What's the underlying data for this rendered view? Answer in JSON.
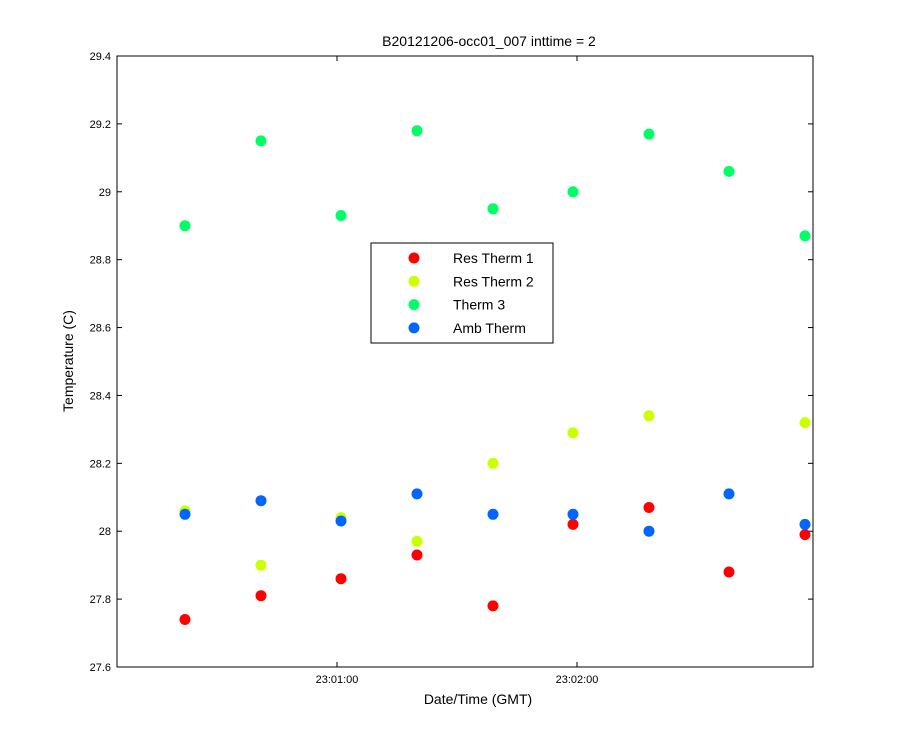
{
  "chart_data": {
    "type": "scatter",
    "title": "B20121206-occ01_007 inttime = 2",
    "xlabel": "Date/Time (GMT)",
    "ylabel": "Temperature (C)",
    "ylim": [
      27.6,
      29.4
    ],
    "yticks": [
      "27.6",
      "27.8",
      "28",
      "28.2",
      "28.4",
      "28.6",
      "28.8",
      "29",
      "29.2",
      "29.4"
    ],
    "xlim": [
      "23:00:05",
      "23:02:59"
    ],
    "xticks": [
      "23:01:00",
      "23:02:00"
    ],
    "grid": false,
    "legend_position": "center",
    "x": [
      "23:00:22",
      "23:00:41",
      "23:01:01",
      "23:01:20",
      "23:01:39",
      "23:01:59",
      "23:02:18",
      "23:02:38",
      "23:02:57"
    ],
    "series": [
      {
        "name": "Res Therm 1",
        "color": "#ff0000",
        "points": [
          [
            "23:00:22",
            27.74
          ],
          [
            "23:00:41",
            27.81
          ],
          [
            "23:01:01",
            27.86
          ],
          [
            "23:01:20",
            27.93
          ],
          [
            "23:01:39",
            27.78
          ],
          [
            "23:01:59",
            28.02
          ],
          [
            "23:02:18",
            28.07
          ],
          [
            "23:02:38",
            27.88
          ],
          [
            "23:02:57",
            27.99
          ]
        ]
      },
      {
        "name": "Res Therm 2",
        "color": "#ccff00",
        "points": [
          [
            "23:00:22",
            28.06
          ],
          [
            "23:00:41",
            27.9
          ],
          [
            "23:01:01",
            28.04
          ],
          [
            "23:01:20",
            27.97
          ],
          [
            "23:01:39",
            28.2
          ],
          [
            "23:01:59",
            28.29
          ],
          [
            "23:02:18",
            28.34
          ],
          [
            "23:02:38",
            28.11
          ],
          [
            "23:02:57",
            28.32
          ]
        ]
      },
      {
        "name": "Therm 3",
        "color": "#00ff66",
        "points": [
          [
            "23:00:22",
            28.9
          ],
          [
            "23:00:41",
            29.15
          ],
          [
            "23:01:01",
            28.93
          ],
          [
            "23:01:20",
            29.18
          ],
          [
            "23:01:39",
            28.95
          ],
          [
            "23:01:59",
            29.0
          ],
          [
            "23:02:18",
            29.17
          ],
          [
            "23:02:38",
            29.06
          ],
          [
            "23:02:57",
            28.87
          ]
        ]
      },
      {
        "name": "Amb Therm",
        "color": "#0066ff",
        "points": [
          [
            "23:00:22",
            28.05
          ],
          [
            "23:00:41",
            28.09
          ],
          [
            "23:01:01",
            28.03
          ],
          [
            "23:01:20",
            28.11
          ],
          [
            "23:01:39",
            28.05
          ],
          [
            "23:01:59",
            28.05
          ],
          [
            "23:02:18",
            28.0
          ],
          [
            "23:02:38",
            28.11
          ],
          [
            "23:02:57",
            28.02
          ]
        ]
      }
    ]
  }
}
